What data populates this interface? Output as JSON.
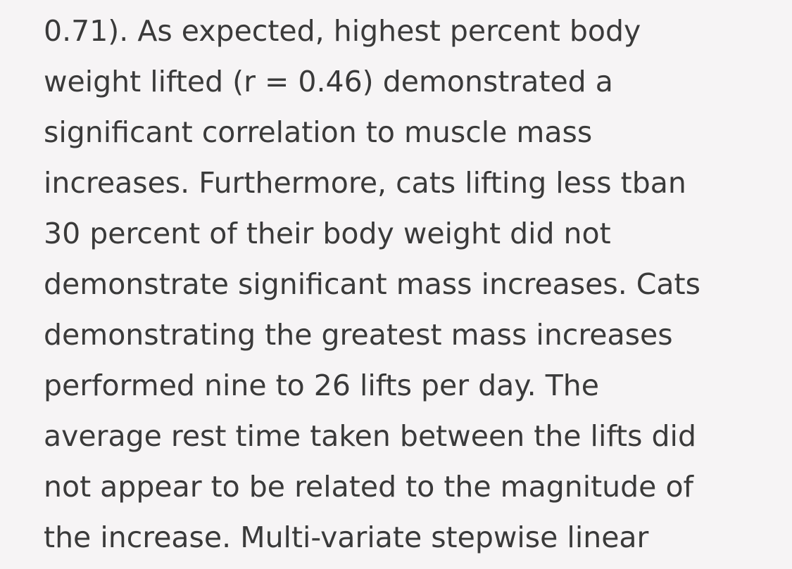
{
  "article": {
    "lines": [
      "0.71). As expected, highest percent body",
      "weight lifted (r = 0.46) demonstrated a",
      "significant correlation to muscle mass",
      "increases. Furthermore, cats lifting less tban",
      "30 percent of their body weight did not",
      "demonstrate significant mass increases. Cats",
      "demonstrating the greatest mass increases",
      "performed nine to 26 lifts per day. The",
      "average rest time taken between the lifts did",
      "not appear to be related to the magnitude of",
      "the increase. Multi-variate stepwise linear"
    ]
  }
}
